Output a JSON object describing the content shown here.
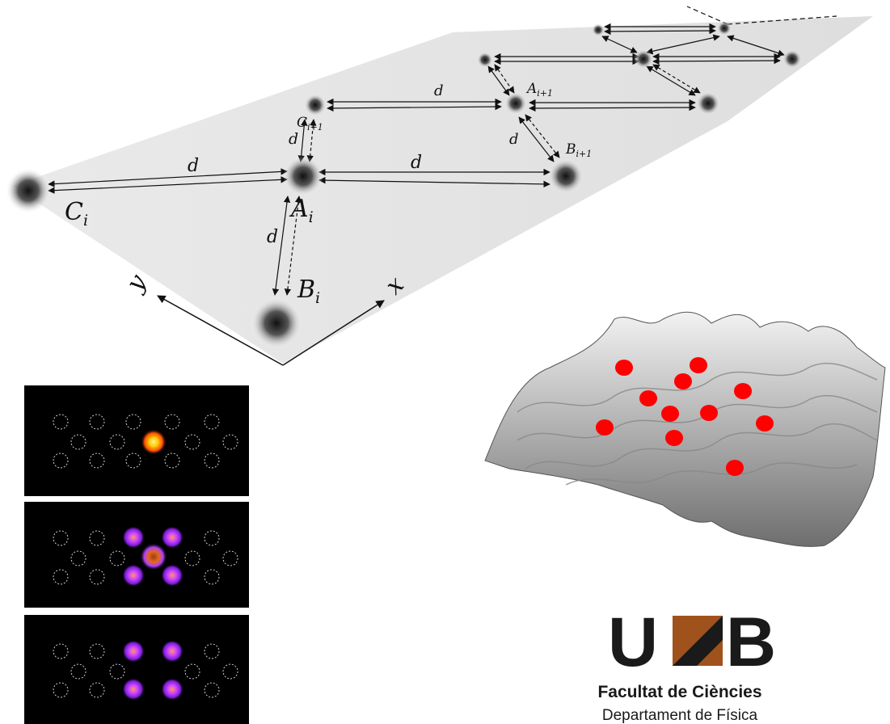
{
  "lattice_diagram": {
    "labels": {
      "A_i": {
        "base": "A",
        "sub": "i"
      },
      "B_i": {
        "base": "B",
        "sub": "i"
      },
      "C_i": {
        "base": "C",
        "sub": "i"
      },
      "A_i1": {
        "base": "A",
        "sub": "i+1"
      },
      "B_i1": {
        "base": "B",
        "sub": "i+1"
      },
      "C_i1": {
        "base": "C",
        "sub": "i+1"
      }
    },
    "distance_label": "d",
    "axis_x": "x",
    "axis_y": "y"
  },
  "density_panels": [
    {
      "state": "center-site",
      "core_color": "#ffd21a",
      "ring_color": "#ff7a00"
    },
    {
      "state": "hexagon-pattern",
      "core_color": "#d45a1a",
      "ring_color": "#a13cff"
    },
    {
      "state": "four-site-pattern",
      "core_color": "#ff6a1a",
      "ring_color": "#9a2bff"
    }
  ],
  "potential_surface": {
    "marker_color": "#ff0000",
    "surface_color": "#b5b5b5"
  },
  "uab_logo": {
    "letters": [
      "U",
      "A",
      "B"
    ],
    "dark_color": "#1a1a1a",
    "accent_color": "#a0521d",
    "faculty": "Facultat de Ciències",
    "department": "Departament de Física"
  }
}
